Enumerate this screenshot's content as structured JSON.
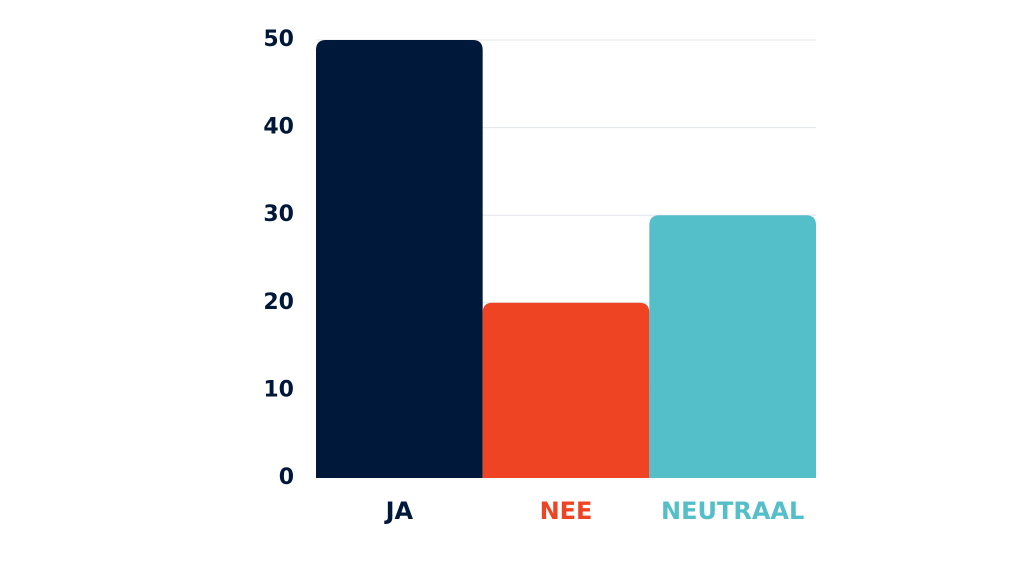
{
  "chart_data": {
    "type": "bar",
    "categories": [
      "JA",
      "NEE",
      "NEUTRAAL"
    ],
    "values": [
      50,
      20,
      30
    ],
    "colors": [
      "#00183a",
      "#ef4424",
      "#55bfc9"
    ],
    "label_colors": [
      "#00183a",
      "#ef4424",
      "#55bfc9"
    ],
    "ylim": [
      0,
      50
    ],
    "yticks": [
      "0",
      "10",
      "20",
      "30",
      "40",
      "50"
    ],
    "grid": true,
    "legend": "none"
  }
}
